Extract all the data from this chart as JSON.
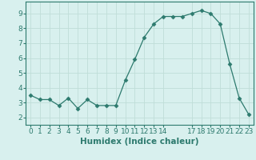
{
  "x": [
    0,
    1,
    2,
    3,
    4,
    5,
    6,
    7,
    8,
    9,
    10,
    11,
    12,
    13,
    14,
    15,
    16,
    17,
    18,
    19,
    20,
    21,
    22,
    23
  ],
  "y": [
    3.5,
    3.2,
    3.2,
    2.8,
    3.3,
    2.6,
    3.2,
    2.8,
    2.8,
    2.8,
    4.5,
    5.9,
    7.4,
    8.3,
    8.8,
    8.8,
    8.8,
    9.0,
    9.2,
    9.0,
    8.3,
    5.6,
    3.3,
    2.2
  ],
  "xlabel": "Humidex (Indice chaleur)",
  "xlim": [
    -0.5,
    23.5
  ],
  "ylim": [
    1.5,
    9.8
  ],
  "yticks": [
    2,
    3,
    4,
    5,
    6,
    7,
    8,
    9
  ],
  "xticks": [
    0,
    1,
    2,
    3,
    4,
    5,
    6,
    7,
    8,
    9,
    10,
    11,
    12,
    13,
    14,
    17,
    18,
    19,
    20,
    21,
    22,
    23
  ],
  "xtick_labels": [
    "0",
    "1",
    "2",
    "3",
    "4",
    "5",
    "6",
    "7",
    "8",
    "9",
    "10",
    "11",
    "12",
    "13",
    "14",
    "17",
    "18",
    "19",
    "20",
    "21",
    "22",
    "23"
  ],
  "line_color": "#2d7a6e",
  "marker": "D",
  "marker_size": 2.5,
  "bg_color": "#d8f0ee",
  "grid_color": "#c0ddd8",
  "tick_fontsize": 6.5,
  "label_fontsize": 7.5
}
